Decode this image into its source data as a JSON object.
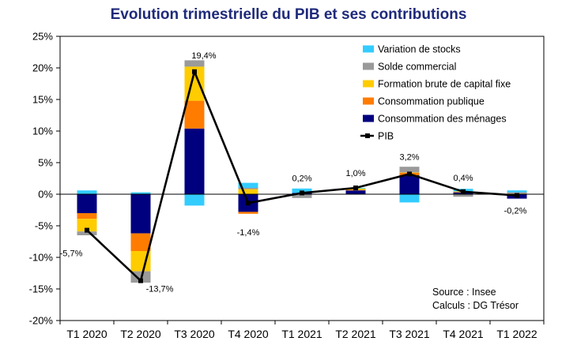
{
  "chart_data": {
    "type": "bar",
    "title": "Evolution trimestrielle du PIB et ses contributions",
    "categories": [
      "T1 2020",
      "T2 2020",
      "T3 2020",
      "T4 2020",
      "T1 2021",
      "T2 2021",
      "T3 2021",
      "T4 2021",
      "T1 2022"
    ],
    "ylim": [
      -20,
      25
    ],
    "yticks": [
      "-20%",
      "-15%",
      "-10%",
      "-5%",
      "0%",
      "5%",
      "10%",
      "15%",
      "20%",
      "25%"
    ],
    "ytick_values": [
      -20,
      -15,
      -10,
      -5,
      0,
      5,
      10,
      15,
      20,
      25
    ],
    "stacked": true,
    "series": [
      {
        "name": "Consommation des ménages",
        "color": "#00007f",
        "values": [
          -3.0,
          -6.2,
          10.4,
          -2.8,
          0.2,
          0.6,
          3.0,
          0.3,
          -0.7
        ]
      },
      {
        "name": "Consommation publique",
        "color": "#ff7c00",
        "values": [
          -0.9,
          -2.8,
          4.4,
          -0.3,
          0.0,
          0.1,
          0.4,
          0.05,
          0.0
        ]
      },
      {
        "name": "Formation brute de capital fixe",
        "color": "#ffcc00",
        "values": [
          -2.0,
          -3.2,
          5.4,
          0.8,
          0.0,
          0.2,
          0.05,
          0.1,
          0.1
        ]
      },
      {
        "name": "Solde commercial",
        "color": "#9a9a9a",
        "values": [
          -0.6,
          -1.8,
          1.0,
          0.2,
          -0.6,
          0.0,
          0.9,
          -0.4,
          0.2
        ]
      },
      {
        "name": "Variation de stocks",
        "color": "#33ccff",
        "values": [
          0.6,
          0.3,
          -1.8,
          0.8,
          0.7,
          0.1,
          -1.3,
          0.4,
          0.3
        ]
      }
    ],
    "line": {
      "name": "PIB",
      "color": "#000000",
      "values": [
        -5.7,
        -13.7,
        19.4,
        -1.4,
        0.2,
        1.0,
        3.2,
        0.4,
        -0.2
      ],
      "labels": [
        "-5,7%",
        "-13,7%",
        "19,4%",
        "-1,4%",
        "0,2%",
        "1,0%",
        "3,2%",
        "0,4%",
        "-0,2%"
      ]
    },
    "legend_order": [
      "Variation de stocks",
      "Solde commercial",
      "Formation brute de capital fixe",
      "Consommation publique",
      "Consommation des ménages",
      "PIB"
    ],
    "legend_position": "top-right",
    "grid": false
  },
  "source": {
    "line1": "Source : Insee",
    "line2": "Calculs : DG Trésor"
  }
}
